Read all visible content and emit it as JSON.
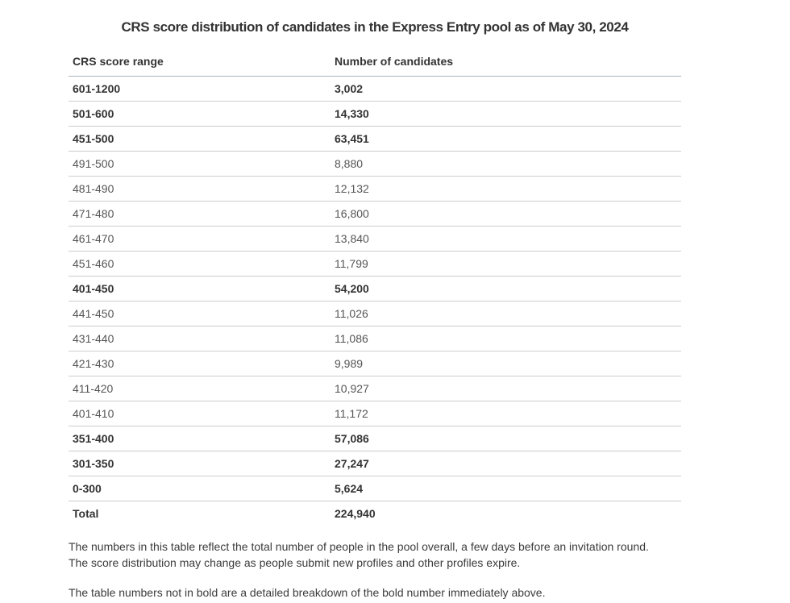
{
  "page": {
    "title": "CRS score distribution of candidates in the Express Entry pool as of May 30, 2024"
  },
  "table": {
    "columns": {
      "range": "CRS score range",
      "count": "Number of candidates"
    },
    "rows": [
      {
        "range": "601-1200",
        "count": "3,002",
        "bold": true
      },
      {
        "range": "501-600",
        "count": "14,330",
        "bold": true
      },
      {
        "range": "451-500",
        "count": "63,451",
        "bold": true
      },
      {
        "range": "491-500",
        "count": "8,880",
        "bold": false
      },
      {
        "range": "481-490",
        "count": "12,132",
        "bold": false
      },
      {
        "range": "471-480",
        "count": "16,800",
        "bold": false
      },
      {
        "range": "461-470",
        "count": "13,840",
        "bold": false
      },
      {
        "range": "451-460",
        "count": "11,799",
        "bold": false
      },
      {
        "range": "401-450",
        "count": "54,200",
        "bold": true
      },
      {
        "range": "441-450",
        "count": "11,026",
        "bold": false
      },
      {
        "range": "431-440",
        "count": "11,086",
        "bold": false
      },
      {
        "range": "421-430",
        "count": "9,989",
        "bold": false
      },
      {
        "range": "411-420",
        "count": "10,927",
        "bold": false
      },
      {
        "range": "401-410",
        "count": "11,172",
        "bold": false
      },
      {
        "range": "351-400",
        "count": "57,086",
        "bold": true
      },
      {
        "range": "301-350",
        "count": "27,247",
        "bold": true
      },
      {
        "range": "0-300",
        "count": "5,624",
        "bold": true
      },
      {
        "range": "Total",
        "count": "224,940",
        "bold": true
      }
    ]
  },
  "notes": {
    "note1_line1": "The numbers in this table reflect the total number of people in the pool overall, a few days before an invitation round.",
    "note1_line2": "The score distribution may change as people submit new profiles and other profiles expire.",
    "note2": "The table numbers not in bold are a detailed breakdown of the bold number immediately above."
  },
  "colors": {
    "background": "#ffffff",
    "text_bold": "#333333",
    "text_regular": "#555555",
    "header_border": "#a9b4ba",
    "row_border": "#cccccc"
  },
  "chart_data": {
    "type": "table",
    "title": "CRS score distribution of candidates in the Express Entry pool as of May 30, 2024",
    "categories": [
      "601-1200",
      "501-600",
      "451-500",
      "491-500",
      "481-490",
      "471-480",
      "461-470",
      "451-460",
      "401-450",
      "441-450",
      "431-440",
      "421-430",
      "411-420",
      "401-410",
      "351-400",
      "301-350",
      "0-300",
      "Total"
    ],
    "values": [
      3002,
      14330,
      63451,
      8880,
      12132,
      16800,
      13840,
      11799,
      54200,
      11026,
      11086,
      9989,
      10927,
      11172,
      57086,
      27247,
      5624,
      224940
    ]
  }
}
